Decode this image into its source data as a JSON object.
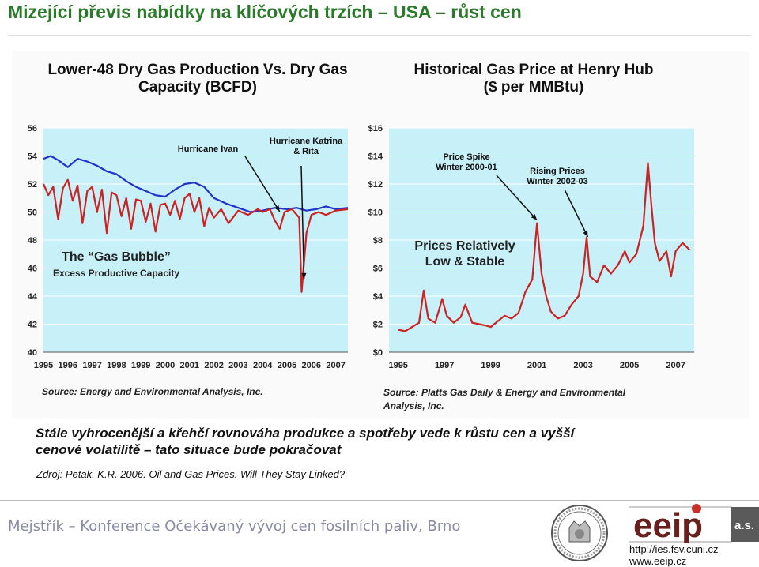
{
  "slide": {
    "title": "Mizející převis nabídky na klíčových trzích – USA – růst cen",
    "caption_line1": "Stále vyhrocenější a křehčí rovnováha produkce a spotřeby vede k růstu cen a vyšší",
    "caption_line2": "cenové volatilitě – tato situace bude pokračovat",
    "reference": "Zdroj: Petak, K.R. 2006. Oil and Gas Prices. Will They Stay Linked?"
  },
  "footer": {
    "text": "Mejstřík – Konference Očekávaný vývoj cen fosilních paliv, Brno",
    "logo_text": "eeip",
    "logo_suffix": "a.s.",
    "url1": "http://ies.fsv.cuni.cz",
    "url2": "www.eeip.cz"
  },
  "chart_data": [
    {
      "type": "line",
      "title_line1": "Lower-48 Dry Gas Production Vs. Dry Gas",
      "title_line2": "Capacity (BCFD)",
      "source": "Source: Energy and Environmental Analysis, Inc.",
      "x_ticks": [
        "1995",
        "1996",
        "1997",
        "1998",
        "1999",
        "2000",
        "2001",
        "2002",
        "2003",
        "2004",
        "2005",
        "2006",
        "2007"
      ],
      "y_ticks": [
        "40",
        "42",
        "44",
        "46",
        "48",
        "50",
        "52",
        "54",
        "56"
      ],
      "ylim": [
        40,
        56
      ],
      "xlim": [
        1995,
        2007.5
      ],
      "series": [
        {
          "color": "#2233cc",
          "points": [
            [
              1995,
              53.8
            ],
            [
              1995.3,
              54.0
            ],
            [
              1995.6,
              53.7
            ],
            [
              1996,
              53.2
            ],
            [
              1996.4,
              53.8
            ],
            [
              1996.8,
              53.6
            ],
            [
              1997.2,
              53.3
            ],
            [
              1997.6,
              52.9
            ],
            [
              1998,
              52.7
            ],
            [
              1998.4,
              52.2
            ],
            [
              1998.8,
              51.8
            ],
            [
              1999.2,
              51.5
            ],
            [
              1999.6,
              51.2
            ],
            [
              2000,
              51.1
            ],
            [
              2000.4,
              51.6
            ],
            [
              2000.8,
              52.0
            ],
            [
              2001.2,
              52.1
            ],
            [
              2001.6,
              51.8
            ],
            [
              2002,
              51.0
            ],
            [
              2002.5,
              50.6
            ],
            [
              2003,
              50.3
            ],
            [
              2003.5,
              50.0
            ],
            [
              2004,
              50.1
            ],
            [
              2004.5,
              50.3
            ],
            [
              2005,
              50.2
            ],
            [
              2005.4,
              50.3
            ],
            [
              2005.8,
              50.1
            ],
            [
              2006.2,
              50.2
            ],
            [
              2006.6,
              50.4
            ],
            [
              2007,
              50.2
            ],
            [
              2007.5,
              50.3
            ]
          ]
        },
        {
          "color": "#cc2222",
          "points": [
            [
              1995,
              52.0
            ],
            [
              1995.2,
              51.2
            ],
            [
              1995.4,
              51.8
            ],
            [
              1995.6,
              49.5
            ],
            [
              1995.8,
              51.7
            ],
            [
              1996,
              52.3
            ],
            [
              1996.2,
              50.8
            ],
            [
              1996.4,
              51.9
            ],
            [
              1996.6,
              49.2
            ],
            [
              1996.8,
              51.5
            ],
            [
              1997,
              51.8
            ],
            [
              1997.2,
              50.0
            ],
            [
              1997.4,
              51.6
            ],
            [
              1997.6,
              48.5
            ],
            [
              1997.8,
              51.4
            ],
            [
              1998,
              51.2
            ],
            [
              1998.2,
              49.7
            ],
            [
              1998.4,
              51.0
            ],
            [
              1998.6,
              48.8
            ],
            [
              1998.8,
              50.9
            ],
            [
              1999,
              50.8
            ],
            [
              1999.2,
              49.3
            ],
            [
              1999.4,
              50.6
            ],
            [
              1999.6,
              48.6
            ],
            [
              1999.8,
              50.5
            ],
            [
              2000,
              50.6
            ],
            [
              2000.2,
              49.8
            ],
            [
              2000.4,
              50.8
            ],
            [
              2000.6,
              49.5
            ],
            [
              2000.8,
              51.0
            ],
            [
              2001,
              51.3
            ],
            [
              2001.2,
              50.0
            ],
            [
              2001.4,
              51.0
            ],
            [
              2001.6,
              49.0
            ],
            [
              2001.8,
              50.3
            ],
            [
              2002,
              49.6
            ],
            [
              2002.3,
              50.2
            ],
            [
              2002.6,
              49.2
            ],
            [
              2003,
              50.1
            ],
            [
              2003.4,
              49.8
            ],
            [
              2003.8,
              50.2
            ],
            [
              2004,
              50.0
            ],
            [
              2004.3,
              50.2
            ],
            [
              2004.5,
              49.4
            ],
            [
              2004.7,
              48.8
            ],
            [
              2004.9,
              50.0
            ],
            [
              2005.2,
              50.2
            ],
            [
              2005.5,
              49.6
            ],
            [
              2005.6,
              44.3
            ],
            [
              2005.8,
              48.5
            ],
            [
              2006,
              49.8
            ],
            [
              2006.3,
              50.0
            ],
            [
              2006.6,
              49.8
            ],
            [
              2007,
              50.1
            ],
            [
              2007.5,
              50.2
            ]
          ]
        }
      ],
      "annotations": [
        {
          "text_line1": "Hurricane Ivan",
          "text_line2": "",
          "x": 2004.7,
          "y": 49.8
        },
        {
          "text_line1": "Hurricane Katrina",
          "text_line2": "& Rita",
          "x": 2005.7,
          "y": 45.0
        }
      ],
      "inner_text_line1": "The “Gas Bubble”",
      "inner_text_line2": "Excess Productive Capacity",
      "background": "#c8f0f8"
    },
    {
      "type": "line",
      "title_line1": "Historical Gas Price at Henry Hub",
      "title_line2": "($ per MMBtu)",
      "source_line1": "Source: Platts Gas Daily & Energy and Environmental",
      "source_line2": "Analysis, Inc.",
      "x_ticks": [
        "1995",
        "1997",
        "1999",
        "2001",
        "2003",
        "2005",
        "2007"
      ],
      "y_ticks": [
        "$0",
        "$2",
        "$4",
        "$6",
        "$8",
        "$10",
        "$12",
        "$14",
        "$16"
      ],
      "ylim": [
        0,
        16
      ],
      "xlim": [
        1994.6,
        2007.8
      ],
      "series": [
        {
          "color": "#cc2222",
          "points": [
            [
              1995,
              1.6
            ],
            [
              1995.3,
              1.5
            ],
            [
              1995.6,
              1.8
            ],
            [
              1995.9,
              2.1
            ],
            [
              1996.1,
              4.4
            ],
            [
              1996.3,
              2.4
            ],
            [
              1996.6,
              2.1
            ],
            [
              1996.9,
              3.8
            ],
            [
              1997.1,
              2.6
            ],
            [
              1997.4,
              2.1
            ],
            [
              1997.7,
              2.5
            ],
            [
              1997.9,
              3.4
            ],
            [
              1998.2,
              2.1
            ],
            [
              1998.5,
              2.0
            ],
            [
              1998.8,
              1.9
            ],
            [
              1999,
              1.8
            ],
            [
              1999.3,
              2.2
            ],
            [
              1999.6,
              2.6
            ],
            [
              1999.9,
              2.4
            ],
            [
              2000.2,
              2.8
            ],
            [
              2000.5,
              4.3
            ],
            [
              2000.8,
              5.2
            ],
            [
              2001,
              9.2
            ],
            [
              2001.2,
              5.6
            ],
            [
              2001.4,
              4.0
            ],
            [
              2001.6,
              2.9
            ],
            [
              2001.9,
              2.4
            ],
            [
              2002.2,
              2.6
            ],
            [
              2002.5,
              3.4
            ],
            [
              2002.8,
              4.0
            ],
            [
              2003,
              5.6
            ],
            [
              2003.15,
              8.2
            ],
            [
              2003.3,
              5.4
            ],
            [
              2003.6,
              5.0
            ],
            [
              2003.9,
              6.2
            ],
            [
              2004.2,
              5.6
            ],
            [
              2004.5,
              6.2
            ],
            [
              2004.8,
              7.2
            ],
            [
              2005,
              6.4
            ],
            [
              2005.3,
              7.0
            ],
            [
              2005.6,
              9.0
            ],
            [
              2005.8,
              13.5
            ],
            [
              2005.95,
              10.5
            ],
            [
              2006.1,
              7.8
            ],
            [
              2006.3,
              6.5
            ],
            [
              2006.6,
              7.2
            ],
            [
              2006.8,
              5.4
            ],
            [
              2007,
              7.2
            ],
            [
              2007.3,
              7.8
            ],
            [
              2007.6,
              7.3
            ]
          ]
        }
      ],
      "annotations": [
        {
          "text_line1": "Price Spike",
          "text_line2": "Winter 2000-01",
          "x": 2001,
          "y": 9.2
        },
        {
          "text_line1": "Rising Prices",
          "text_line2": "Winter 2002-03",
          "x": 2003.2,
          "y": 8.0
        }
      ],
      "inner_text_line1": "Prices Relatively",
      "inner_text_line2": "Low & Stable",
      "background": "#c8f0f8"
    }
  ]
}
